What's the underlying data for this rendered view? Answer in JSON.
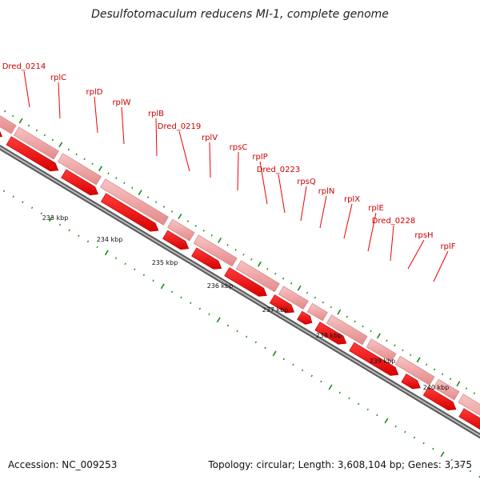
{
  "header": {
    "title": "Desulfotomaculum reducens MI-1, complete genome"
  },
  "footer": {
    "accession": "Accession: NC_009253",
    "summary": "Topology: circular; Length: 3,608,104 bp; Genes: 3,375"
  },
  "colors": {
    "gene_label": "#cc0000",
    "leader_line": "#ee0000",
    "forward_cds": "#f0a0a0",
    "reverse_cds": "#ff0000",
    "backbone": "#808080",
    "tick": "#1a8a1a"
  },
  "genes": [
    {
      "label": "Dred_0214"
    },
    {
      "label": "rplC"
    },
    {
      "label": "rplD"
    },
    {
      "label": "rplW"
    },
    {
      "label": "rplB"
    },
    {
      "label": "Dred_0219"
    },
    {
      "label": "rplV"
    },
    {
      "label": "rpsC"
    },
    {
      "label": "rplP"
    },
    {
      "label": "Dred_0223"
    },
    {
      "label": "rpsQ"
    },
    {
      "label": "rplN"
    },
    {
      "label": "rplX"
    },
    {
      "label": "rplE"
    },
    {
      "label": "Dred_0228"
    },
    {
      "label": "rpsH"
    },
    {
      "label": "rplF"
    }
  ],
  "kbp_labels": [
    "233 kbp",
    "234 kbp",
    "235 kbp",
    "236 kbp",
    "237 kbp",
    "238 kbp",
    "239 kbp",
    "240 kbp"
  ]
}
